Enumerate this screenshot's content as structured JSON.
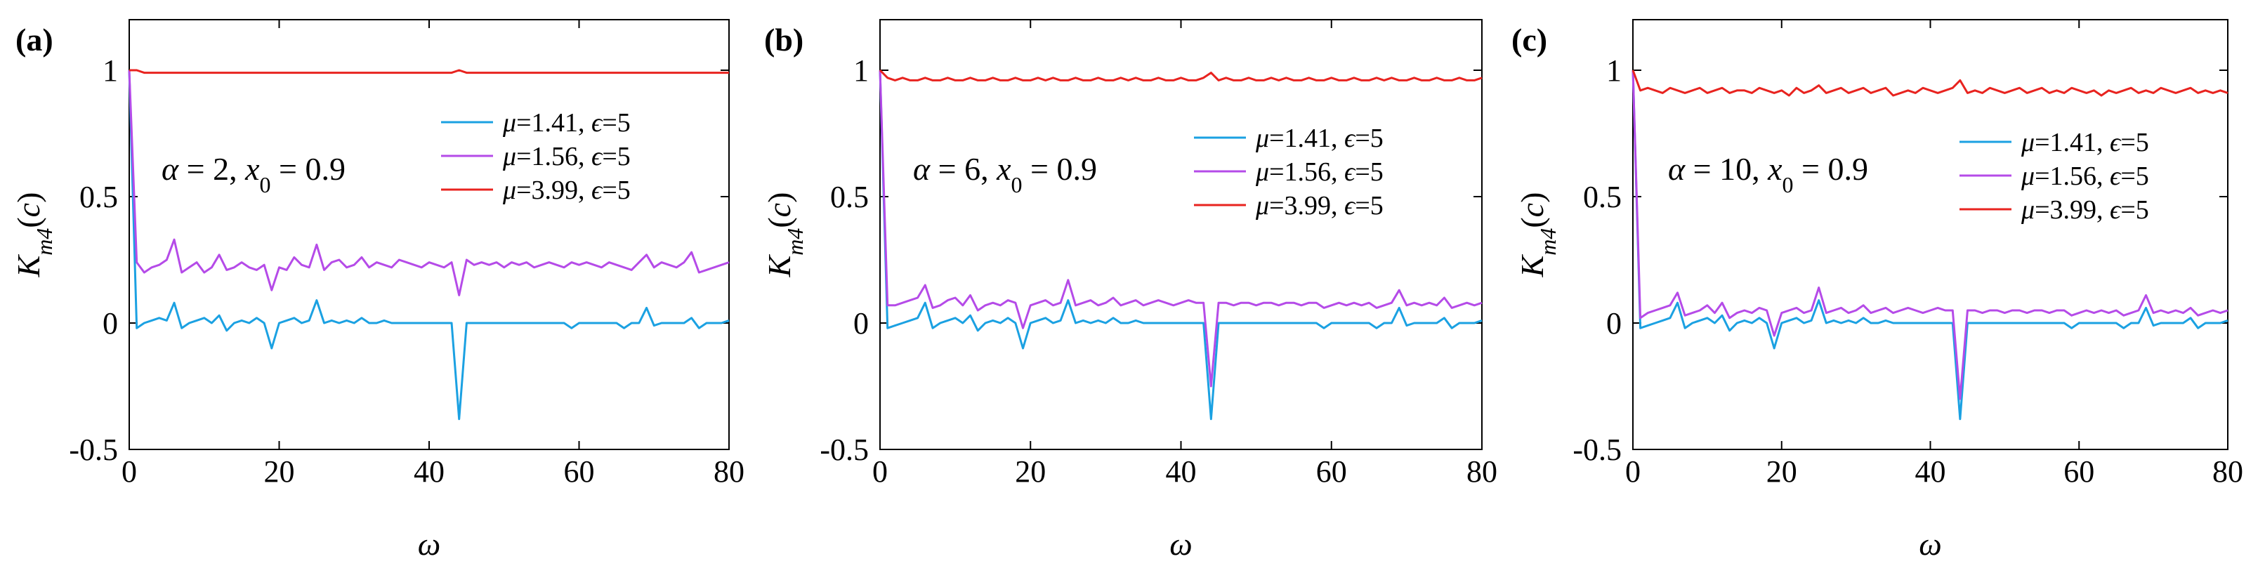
{
  "chart_data": [
    {
      "type": "line",
      "panel_label": "(a)",
      "annotation": "α = 2, x₀ = 0.9",
      "xlabel": "ω",
      "ylabel": "K_m4(c)",
      "xlim": [
        0,
        80
      ],
      "ylim": [
        -0.5,
        1.2
      ],
      "xticks": [
        0,
        20,
        40,
        60,
        80
      ],
      "xtick_labels": [
        "0",
        "20",
        "40",
        "60",
        "80"
      ],
      "yticks": [
        -0.5,
        0,
        0.5,
        1
      ],
      "ytick_labels": [
        "-0.5",
        "0",
        "0.5",
        "1"
      ],
      "legend_position": "upper-right",
      "series": [
        {
          "name": "μ=1.41, ϵ=5",
          "color": "#1ba1e2",
          "values": [
            1.0,
            -0.02,
            0.0,
            0.01,
            0.02,
            0.01,
            0.08,
            -0.02,
            0.0,
            0.01,
            0.02,
            0.0,
            0.03,
            -0.03,
            0.0,
            0.01,
            0.0,
            0.02,
            0.0,
            -0.1,
            0.0,
            0.01,
            0.02,
            0.0,
            0.01,
            0.09,
            0.0,
            0.01,
            0.0,
            0.01,
            0.0,
            0.02,
            0.0,
            0.0,
            0.01,
            0.0,
            0.0,
            0.0,
            0.0,
            0.0,
            0.0,
            0.0,
            0.0,
            0.0,
            -0.38,
            0.0,
            0.0,
            0.0,
            0.0,
            0.0,
            0.0,
            0.0,
            0.0,
            0.0,
            0.0,
            0.0,
            0.0,
            0.0,
            0.0,
            -0.02,
            0.0,
            0.0,
            0.0,
            0.0,
            0.0,
            0.0,
            -0.02,
            0.0,
            0.0,
            0.06,
            -0.01,
            0.0,
            0.0,
            0.0,
            0.0,
            0.02,
            -0.02,
            0.0,
            0.0,
            0.0,
            0.01
          ]
        },
        {
          "name": "μ=1.56, ϵ=5",
          "color": "#b54be8",
          "values": [
            1.0,
            0.24,
            0.2,
            0.22,
            0.23,
            0.25,
            0.33,
            0.2,
            0.22,
            0.24,
            0.2,
            0.22,
            0.27,
            0.21,
            0.22,
            0.24,
            0.22,
            0.21,
            0.23,
            0.13,
            0.22,
            0.21,
            0.26,
            0.23,
            0.22,
            0.31,
            0.21,
            0.24,
            0.25,
            0.22,
            0.23,
            0.26,
            0.22,
            0.24,
            0.23,
            0.22,
            0.25,
            0.24,
            0.23,
            0.22,
            0.24,
            0.23,
            0.22,
            0.24,
            0.11,
            0.25,
            0.23,
            0.24,
            0.23,
            0.24,
            0.22,
            0.24,
            0.23,
            0.24,
            0.22,
            0.23,
            0.24,
            0.23,
            0.22,
            0.24,
            0.23,
            0.24,
            0.23,
            0.22,
            0.24,
            0.23,
            0.22,
            0.21,
            0.24,
            0.27,
            0.22,
            0.24,
            0.23,
            0.22,
            0.24,
            0.28,
            0.2,
            0.21,
            0.22,
            0.23,
            0.24
          ]
        },
        {
          "name": "μ=3.99, ϵ=5",
          "color": "#e8231f",
          "values": [
            1.0,
            1.0,
            0.99,
            0.99,
            0.99,
            0.99,
            0.99,
            0.99,
            0.99,
            0.99,
            0.99,
            0.99,
            0.99,
            0.99,
            0.99,
            0.99,
            0.99,
            0.99,
            0.99,
            0.99,
            0.99,
            0.99,
            0.99,
            0.99,
            0.99,
            0.99,
            0.99,
            0.99,
            0.99,
            0.99,
            0.99,
            0.99,
            0.99,
            0.99,
            0.99,
            0.99,
            0.99,
            0.99,
            0.99,
            0.99,
            0.99,
            0.99,
            0.99,
            0.99,
            1.0,
            0.99,
            0.99,
            0.99,
            0.99,
            0.99,
            0.99,
            0.99,
            0.99,
            0.99,
            0.99,
            0.99,
            0.99,
            0.99,
            0.99,
            0.99,
            0.99,
            0.99,
            0.99,
            0.99,
            0.99,
            0.99,
            0.99,
            0.99,
            0.99,
            0.99,
            0.99,
            0.99,
            0.99,
            0.99,
            0.99,
            0.99,
            0.99,
            0.99,
            0.99,
            0.99,
            0.99
          ]
        }
      ]
    },
    {
      "type": "line",
      "panel_label": "(b)",
      "annotation": "α = 6, x₀ = 0.9",
      "xlabel": "ω",
      "ylabel": "K_m4(c)",
      "xlim": [
        0,
        80
      ],
      "ylim": [
        -0.5,
        1.2
      ],
      "xticks": [
        0,
        20,
        40,
        60,
        80
      ],
      "xtick_labels": [
        "0",
        "20",
        "40",
        "60",
        "80"
      ],
      "yticks": [
        -0.5,
        0,
        0.5,
        1
      ],
      "ytick_labels": [
        "-0.5",
        "0",
        "0.5",
        "1"
      ],
      "legend_position": "upper-right",
      "series": [
        {
          "name": "μ=1.41, ϵ=5",
          "color": "#1ba1e2",
          "values": [
            1.0,
            -0.02,
            -0.01,
            0.0,
            0.01,
            0.02,
            0.08,
            -0.02,
            0.0,
            0.01,
            0.02,
            0.0,
            0.03,
            -0.03,
            0.0,
            0.01,
            0.0,
            0.02,
            0.0,
            -0.1,
            0.0,
            0.01,
            0.02,
            0.0,
            0.01,
            0.09,
            0.0,
            0.01,
            0.0,
            0.01,
            0.0,
            0.02,
            0.0,
            0.0,
            0.01,
            0.0,
            0.0,
            0.0,
            0.0,
            0.0,
            0.0,
            0.0,
            0.0,
            0.0,
            -0.38,
            0.0,
            0.0,
            0.0,
            0.0,
            0.0,
            0.0,
            0.0,
            0.0,
            0.0,
            0.0,
            0.0,
            0.0,
            0.0,
            0.0,
            -0.02,
            0.0,
            0.0,
            0.0,
            0.0,
            0.0,
            0.0,
            -0.02,
            0.0,
            0.0,
            0.06,
            -0.01,
            0.0,
            0.0,
            0.0,
            0.0,
            0.02,
            -0.02,
            0.0,
            0.0,
            0.0,
            0.01
          ]
        },
        {
          "name": "μ=1.56, ϵ=5",
          "color": "#b54be8",
          "values": [
            1.0,
            0.07,
            0.07,
            0.08,
            0.09,
            0.1,
            0.15,
            0.06,
            0.07,
            0.09,
            0.1,
            0.07,
            0.11,
            0.05,
            0.07,
            0.08,
            0.07,
            0.09,
            0.08,
            -0.02,
            0.07,
            0.08,
            0.09,
            0.07,
            0.08,
            0.17,
            0.07,
            0.08,
            0.09,
            0.07,
            0.08,
            0.1,
            0.07,
            0.08,
            0.09,
            0.07,
            0.08,
            0.09,
            0.08,
            0.07,
            0.08,
            0.09,
            0.08,
            0.08,
            -0.25,
            0.08,
            0.08,
            0.07,
            0.08,
            0.08,
            0.07,
            0.08,
            0.08,
            0.07,
            0.08,
            0.08,
            0.07,
            0.08,
            0.08,
            0.06,
            0.07,
            0.08,
            0.07,
            0.08,
            0.07,
            0.08,
            0.06,
            0.07,
            0.08,
            0.13,
            0.07,
            0.08,
            0.07,
            0.08,
            0.07,
            0.1,
            0.06,
            0.07,
            0.08,
            0.07,
            0.08
          ]
        },
        {
          "name": "μ=3.99, ϵ=5",
          "color": "#e8231f",
          "values": [
            1.0,
            0.97,
            0.96,
            0.97,
            0.96,
            0.96,
            0.97,
            0.96,
            0.96,
            0.97,
            0.96,
            0.96,
            0.97,
            0.96,
            0.96,
            0.97,
            0.96,
            0.96,
            0.97,
            0.96,
            0.96,
            0.97,
            0.96,
            0.97,
            0.96,
            0.96,
            0.97,
            0.96,
            0.96,
            0.97,
            0.96,
            0.96,
            0.97,
            0.96,
            0.97,
            0.96,
            0.96,
            0.97,
            0.96,
            0.96,
            0.97,
            0.96,
            0.96,
            0.97,
            0.99,
            0.96,
            0.97,
            0.96,
            0.96,
            0.97,
            0.96,
            0.96,
            0.97,
            0.96,
            0.97,
            0.96,
            0.96,
            0.97,
            0.96,
            0.96,
            0.97,
            0.96,
            0.96,
            0.97,
            0.96,
            0.96,
            0.97,
            0.96,
            0.97,
            0.96,
            0.96,
            0.97,
            0.96,
            0.96,
            0.97,
            0.96,
            0.96,
            0.97,
            0.96,
            0.96,
            0.97
          ]
        }
      ]
    },
    {
      "type": "line",
      "panel_label": "(c)",
      "annotation": "α = 10, x₀ = 0.9",
      "xlabel": "ω",
      "ylabel": "K_m4(c)",
      "xlim": [
        0,
        80
      ],
      "ylim": [
        -0.5,
        1.2
      ],
      "xticks": [
        0,
        20,
        40,
        60,
        80
      ],
      "xtick_labels": [
        "0",
        "20",
        "40",
        "60",
        "80"
      ],
      "yticks": [
        -0.5,
        0,
        0.5,
        1
      ],
      "ytick_labels": [
        "-0.5",
        "0",
        "0.5",
        "1"
      ],
      "legend_position": "upper-right",
      "series": [
        {
          "name": "μ=1.41, ϵ=5",
          "color": "#1ba1e2",
          "values": [
            1.0,
            -0.02,
            -0.01,
            0.0,
            0.01,
            0.02,
            0.08,
            -0.02,
            0.0,
            0.01,
            0.02,
            0.0,
            0.03,
            -0.03,
            0.0,
            0.01,
            0.0,
            0.02,
            0.0,
            -0.1,
            0.0,
            0.01,
            0.02,
            0.0,
            0.01,
            0.09,
            0.0,
            0.01,
            0.0,
            0.01,
            0.0,
            0.02,
            0.0,
            0.0,
            0.01,
            0.0,
            0.0,
            0.0,
            0.0,
            0.0,
            0.0,
            0.0,
            0.0,
            0.0,
            -0.38,
            0.0,
            0.0,
            0.0,
            0.0,
            0.0,
            0.0,
            0.0,
            0.0,
            0.0,
            0.0,
            0.0,
            0.0,
            0.0,
            0.0,
            -0.02,
            0.0,
            0.0,
            0.0,
            0.0,
            0.0,
            0.0,
            -0.02,
            0.0,
            0.0,
            0.06,
            -0.01,
            0.0,
            0.0,
            0.0,
            0.0,
            0.02,
            -0.02,
            0.0,
            0.0,
            0.0,
            0.01
          ]
        },
        {
          "name": "μ=1.56, ϵ=5",
          "color": "#b54be8",
          "values": [
            1.0,
            0.02,
            0.04,
            0.05,
            0.06,
            0.07,
            0.12,
            0.03,
            0.04,
            0.05,
            0.07,
            0.04,
            0.08,
            0.02,
            0.04,
            0.05,
            0.04,
            0.06,
            0.05,
            -0.05,
            0.04,
            0.05,
            0.06,
            0.04,
            0.05,
            0.14,
            0.04,
            0.05,
            0.06,
            0.04,
            0.05,
            0.07,
            0.04,
            0.05,
            0.06,
            0.04,
            0.05,
            0.06,
            0.05,
            0.04,
            0.05,
            0.06,
            0.05,
            0.05,
            -0.3,
            0.05,
            0.05,
            0.04,
            0.05,
            0.05,
            0.04,
            0.05,
            0.05,
            0.04,
            0.05,
            0.05,
            0.04,
            0.05,
            0.05,
            0.03,
            0.04,
            0.05,
            0.04,
            0.05,
            0.04,
            0.05,
            0.03,
            0.04,
            0.05,
            0.11,
            0.04,
            0.05,
            0.04,
            0.05,
            0.04,
            0.06,
            0.03,
            0.04,
            0.05,
            0.04,
            0.05
          ]
        },
        {
          "name": "μ=3.99, ϵ=5",
          "color": "#e8231f",
          "values": [
            1.0,
            0.92,
            0.93,
            0.92,
            0.91,
            0.93,
            0.92,
            0.91,
            0.92,
            0.93,
            0.91,
            0.92,
            0.93,
            0.91,
            0.92,
            0.92,
            0.91,
            0.93,
            0.92,
            0.91,
            0.92,
            0.9,
            0.93,
            0.91,
            0.92,
            0.94,
            0.91,
            0.92,
            0.93,
            0.91,
            0.92,
            0.93,
            0.91,
            0.92,
            0.93,
            0.9,
            0.91,
            0.92,
            0.91,
            0.93,
            0.92,
            0.91,
            0.92,
            0.93,
            0.96,
            0.91,
            0.92,
            0.91,
            0.93,
            0.92,
            0.91,
            0.92,
            0.93,
            0.91,
            0.92,
            0.93,
            0.91,
            0.92,
            0.91,
            0.93,
            0.92,
            0.91,
            0.92,
            0.9,
            0.92,
            0.91,
            0.92,
            0.93,
            0.91,
            0.92,
            0.91,
            0.93,
            0.92,
            0.91,
            0.92,
            0.93,
            0.91,
            0.92,
            0.91,
            0.92,
            0.91
          ]
        }
      ]
    }
  ]
}
